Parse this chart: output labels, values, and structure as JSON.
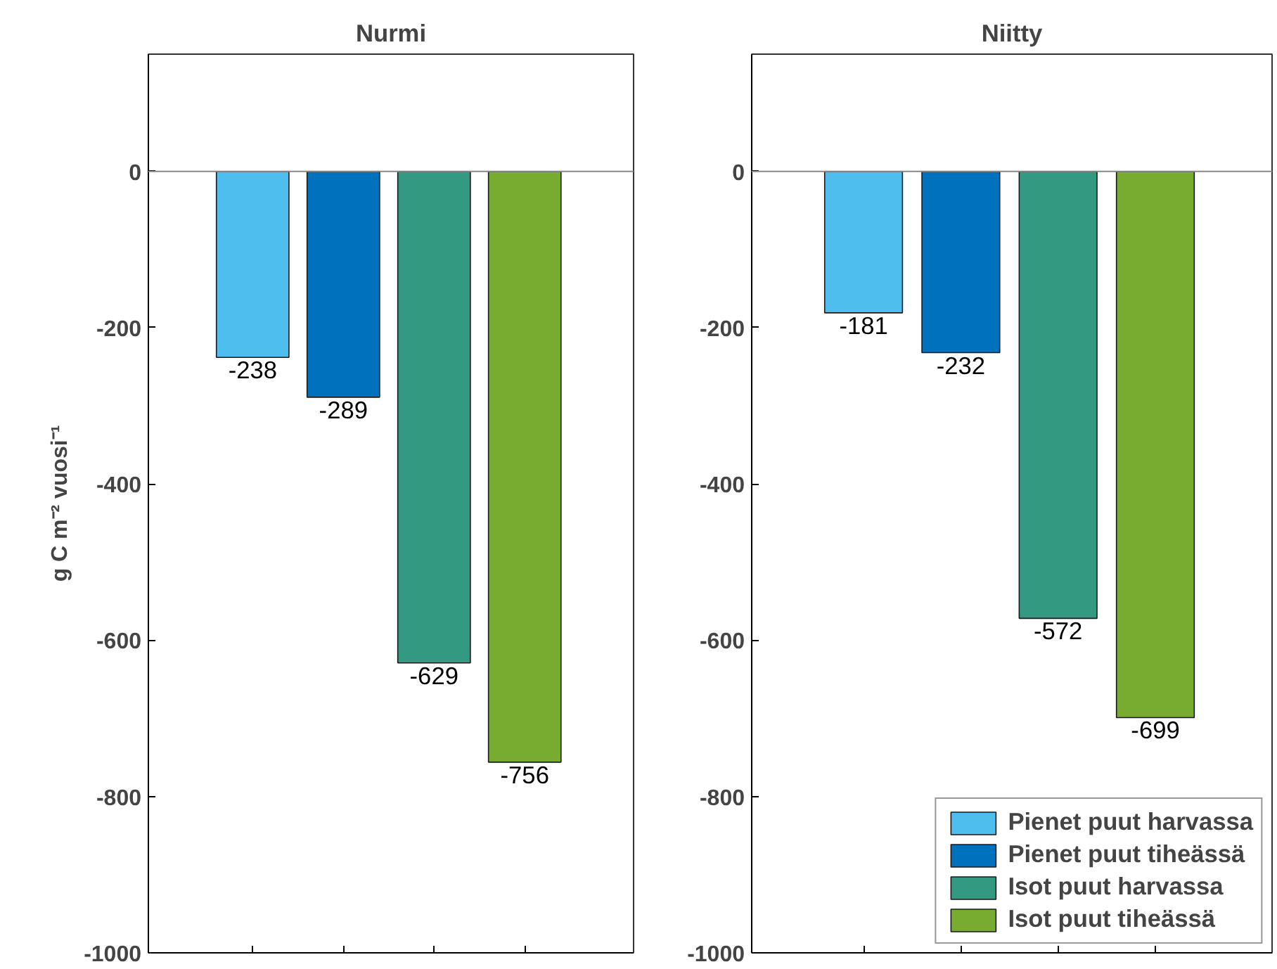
{
  "chart_data": [
    {
      "type": "bar",
      "title": "Nurmi",
      "ylabel": "g C m⁻² vuosi⁻¹",
      "categories": [
        null,
        null,
        null,
        null
      ],
      "series": [
        {
          "color": "#4dbeee",
          "values": [
            -238,
            null,
            null,
            null
          ]
        },
        {
          "color": "#0072bd",
          "values": [
            null,
            -289,
            null,
            null
          ]
        },
        {
          "color": "#339980",
          "values": [
            null,
            null,
            -629,
            null
          ]
        },
        {
          "color": "#77ac30",
          "values": [
            null,
            null,
            null,
            -756
          ]
        }
      ],
      "ylim": [
        -1000,
        150
      ],
      "yticks": [
        -1000,
        -800,
        -600,
        -400,
        -200,
        0
      ],
      "ref_lines": [
        {
          "axis": "y",
          "value": 0,
          "color": "#888888"
        }
      ],
      "data_labels": true,
      "grid": false,
      "legend": false
    },
    {
      "type": "bar",
      "title": "Niitty",
      "categories": [
        null,
        null,
        null,
        null
      ],
      "series": [
        {
          "name": "Pienet puut harvassa",
          "color": "#4dbeee",
          "values": [
            -181,
            null,
            null,
            null
          ]
        },
        {
          "name": "Pienet puut tiheässä",
          "color": "#0072bd",
          "values": [
            null,
            -232,
            null,
            null
          ]
        },
        {
          "name": "Isot puut harvassa",
          "color": "#339980",
          "values": [
            null,
            null,
            -572,
            null
          ]
        },
        {
          "name": "Isot puut tiheässä",
          "color": "#77ac30",
          "values": [
            null,
            null,
            null,
            -699
          ]
        }
      ],
      "ylim": [
        -1000,
        150
      ],
      "yticks": [
        -1000,
        -800,
        -600,
        -400,
        -200,
        0
      ],
      "ref_lines": [
        {
          "axis": "y",
          "value": 0,
          "color": "#888888"
        }
      ],
      "data_labels": true,
      "grid": false,
      "legend": "bottom right"
    }
  ]
}
